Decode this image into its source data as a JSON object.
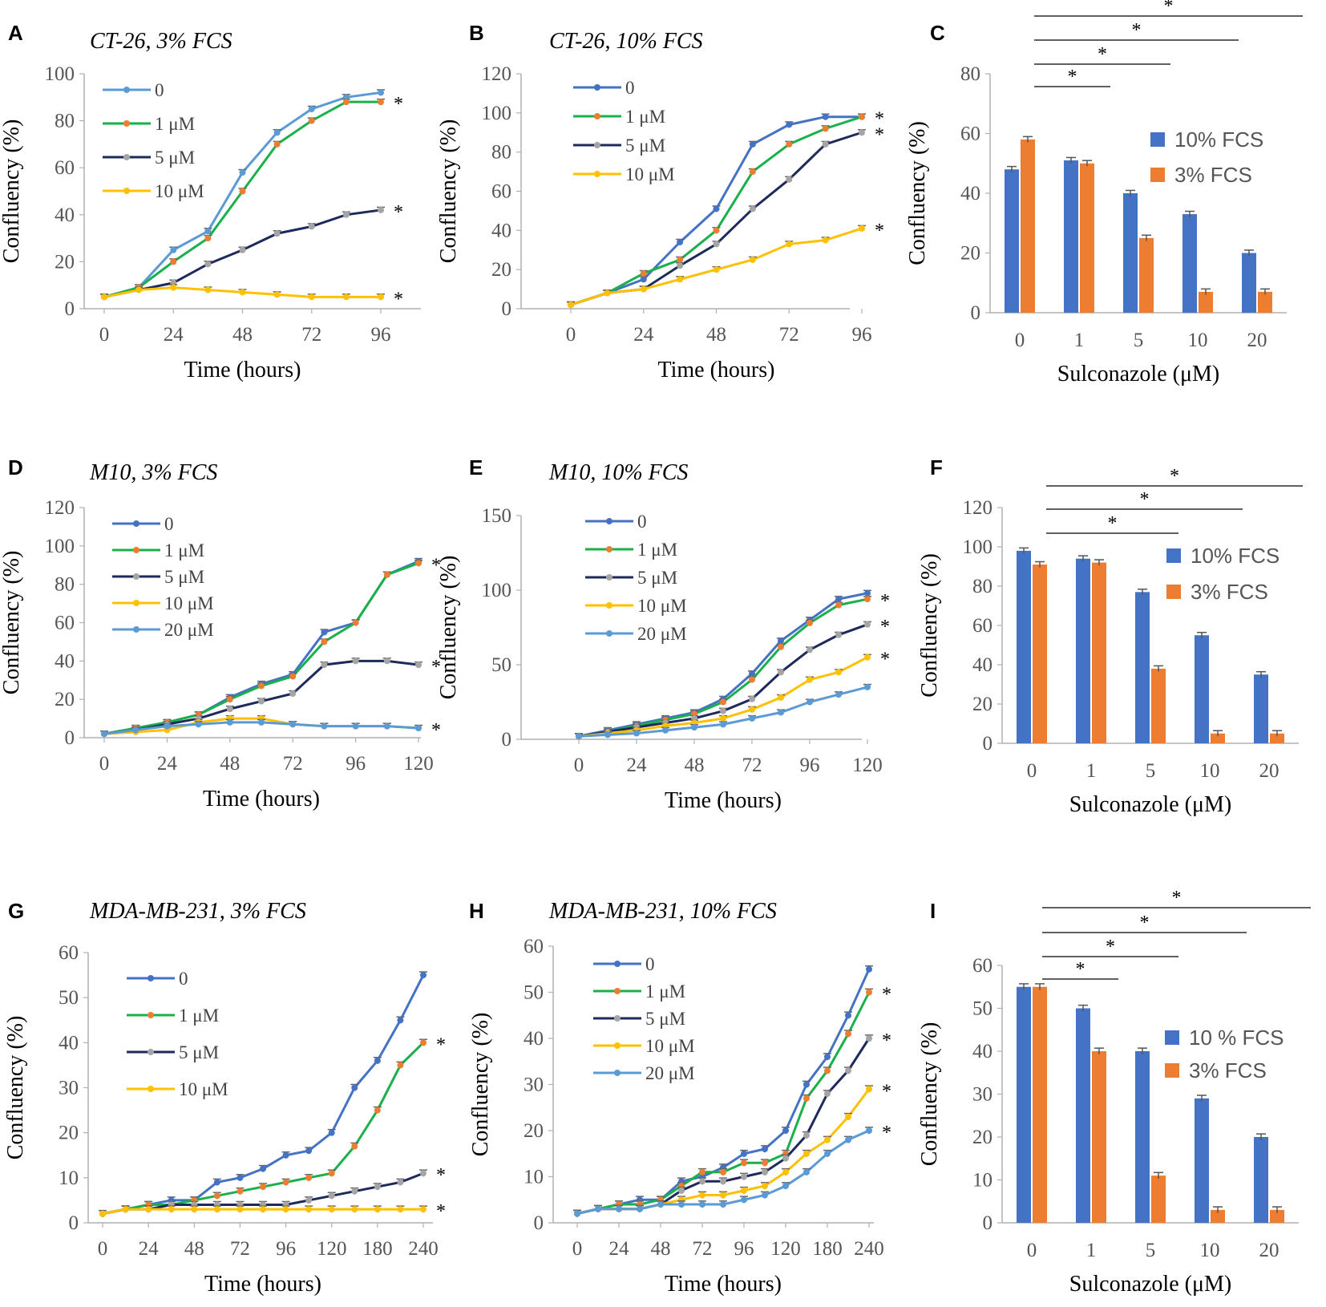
{
  "figure": {
    "x_label_time": "Time (hours)",
    "x_label_drug": "Sulconazole (μM)",
    "y_label": "Confluency (%)",
    "colors": {
      "c0": "#4472C4",
      "c0_light": "#5B9BD5",
      "c1": "#1AB04A",
      "c5": "#1F2A5C",
      "c10": "#FFC000",
      "c20": "#5B9BD5",
      "marker1": "#ED7D31",
      "marker5": "#A5A5A5",
      "bar10": "#4472C4",
      "bar3": "#ED7D31"
    }
  },
  "chart_data": [
    {
      "panel": "A",
      "type": "line",
      "title": "CT-26, 3% FCS",
      "x": [
        0,
        12,
        24,
        36,
        48,
        60,
        72,
        84,
        96
      ],
      "xticks": [
        "0",
        "24",
        "48",
        "72",
        "96"
      ],
      "ylim": [
        0,
        100
      ],
      "yticks": [
        "0",
        "20",
        "40",
        "60",
        "80",
        "100"
      ],
      "series": [
        {
          "name": "0",
          "values": [
            5,
            9,
            25,
            33,
            58,
            75,
            85,
            90,
            92
          ]
        },
        {
          "name": "1 μM",
          "values": [
            5,
            9,
            20,
            30,
            50,
            70,
            80,
            88,
            88
          ]
        },
        {
          "name": "5 μM",
          "values": [
            5,
            8,
            11,
            19,
            25,
            32,
            35,
            40,
            42
          ]
        },
        {
          "name": "10 μM",
          "values": [
            5,
            8,
            9,
            8,
            7,
            6,
            5,
            5,
            5
          ]
        }
      ],
      "significance": [
        "*",
        "*",
        "*"
      ]
    },
    {
      "panel": "B",
      "type": "line",
      "title": "CT-26, 10% FCS",
      "x": [
        0,
        12,
        24,
        36,
        48,
        60,
        72,
        84,
        96
      ],
      "xticks": [
        "0",
        "24",
        "48",
        "72",
        "96"
      ],
      "ylim": [
        0,
        120
      ],
      "yticks": [
        "0",
        "20",
        "40",
        "60",
        "80",
        "100",
        "120"
      ],
      "series": [
        {
          "name": "0",
          "values": [
            2,
            8,
            15,
            34,
            51,
            84,
            94,
            98,
            98
          ]
        },
        {
          "name": "1 μM",
          "values": [
            2,
            8,
            18,
            25,
            40,
            70,
            84,
            92,
            98
          ]
        },
        {
          "name": "5 μM",
          "values": [
            2,
            8,
            10,
            22,
            33,
            51,
            66,
            84,
            90
          ]
        },
        {
          "name": "10 μM",
          "values": [
            2,
            8,
            10,
            15,
            20,
            25,
            33,
            35,
            41
          ]
        }
      ],
      "significance": [
        "*",
        "*",
        "*"
      ]
    },
    {
      "panel": "C",
      "type": "bar",
      "categories": [
        "0",
        "1",
        "5",
        "10",
        "20"
      ],
      "ylim": [
        0,
        80
      ],
      "yticks": [
        "0",
        "20",
        "40",
        "60",
        "80"
      ],
      "series": [
        {
          "name": "10%  FCS",
          "values": [
            48,
            51,
            40,
            33,
            20
          ]
        },
        {
          "name": "3% FCS",
          "values": [
            58,
            50,
            25,
            7,
            7
          ]
        }
      ],
      "significance": [
        "*",
        "*",
        "*",
        "*"
      ]
    },
    {
      "panel": "D",
      "type": "line",
      "title": "M10, 3% FCS",
      "x": [
        0,
        12,
        24,
        36,
        48,
        60,
        72,
        84,
        96,
        108,
        120
      ],
      "xticks": [
        "0",
        "24",
        "48",
        "72",
        "96",
        "120"
      ],
      "ylim": [
        0,
        120
      ],
      "yticks": [
        "0",
        "20",
        "40",
        "60",
        "80",
        "100",
        "120"
      ],
      "series": [
        {
          "name": "0",
          "values": [
            2,
            5,
            8,
            12,
            21,
            28,
            33,
            55,
            60,
            85,
            92
          ]
        },
        {
          "name": "1 μM",
          "values": [
            2,
            5,
            8,
            12,
            20,
            27,
            32,
            50,
            60,
            85,
            91
          ]
        },
        {
          "name": "5 μM",
          "values": [
            2,
            4,
            7,
            10,
            15,
            19,
            23,
            38,
            40,
            40,
            38
          ]
        },
        {
          "name": "10 μM",
          "values": [
            2,
            3,
            4,
            8,
            10,
            10,
            7,
            6,
            6,
            6,
            5
          ]
        },
        {
          "name": "20 μM",
          "values": [
            2,
            4,
            6,
            7,
            8,
            8,
            7,
            6,
            6,
            6,
            5
          ]
        }
      ],
      "significance": [
        "*",
        "*",
        "*"
      ]
    },
    {
      "panel": "E",
      "type": "line",
      "title": "M10, 10% FCS",
      "x": [
        0,
        12,
        24,
        36,
        48,
        60,
        72,
        84,
        96,
        108,
        120
      ],
      "xticks": [
        "0",
        "24",
        "48",
        "72",
        "96",
        "120"
      ],
      "ylim": [
        0,
        150
      ],
      "yticks": [
        "0",
        "50",
        "100",
        "150"
      ],
      "series": [
        {
          "name": "0",
          "values": [
            2,
            6,
            10,
            14,
            18,
            27,
            44,
            66,
            80,
            94,
            98
          ]
        },
        {
          "name": "1 μM",
          "values": [
            2,
            5,
            9,
            13,
            17,
            25,
            40,
            62,
            78,
            90,
            94
          ]
        },
        {
          "name": "5 μM",
          "values": [
            2,
            5,
            8,
            11,
            14,
            19,
            27,
            45,
            60,
            70,
            77
          ]
        },
        {
          "name": "10 μM",
          "values": [
            2,
            4,
            6,
            9,
            11,
            14,
            20,
            28,
            40,
            45,
            55
          ]
        },
        {
          "name": "20 μM",
          "values": [
            2,
            3,
            4,
            6,
            8,
            10,
            14,
            18,
            25,
            30,
            35
          ]
        }
      ],
      "significance": [
        "*",
        "*",
        "*"
      ]
    },
    {
      "panel": "F",
      "type": "bar",
      "categories": [
        "0",
        "1",
        "5",
        "10",
        "20"
      ],
      "ylim": [
        0,
        120
      ],
      "yticks": [
        "0",
        "20",
        "40",
        "60",
        "80",
        "100",
        "120"
      ],
      "series": [
        {
          "name": "10% FCS",
          "values": [
            98,
            94,
            77,
            55,
            35
          ]
        },
        {
          "name": "3%  FCS",
          "values": [
            91,
            92,
            38,
            5,
            5
          ]
        }
      ],
      "significance": [
        "*",
        "*",
        "*"
      ]
    },
    {
      "panel": "G",
      "type": "line",
      "title": "MDA-MB-231, 3% FCS",
      "x": [
        0,
        12,
        24,
        36,
        48,
        60,
        72,
        84,
        96,
        108,
        120,
        150,
        180,
        210,
        240
      ],
      "xticks": [
        "0",
        "24",
        "48",
        "72",
        "96",
        "120",
        "180",
        "240"
      ],
      "ylim": [
        0,
        60
      ],
      "yticks": [
        "0",
        "10",
        "20",
        "30",
        "40",
        "50",
        "60"
      ],
      "series": [
        {
          "name": "0",
          "values": [
            2,
            3,
            4,
            5,
            5,
            9,
            10,
            12,
            15,
            16,
            20,
            30,
            36,
            45,
            55
          ]
        },
        {
          "name": "1 μM",
          "values": [
            2,
            3,
            4,
            4,
            5,
            6,
            7,
            8,
            9,
            10,
            11,
            17,
            25,
            35,
            40
          ]
        },
        {
          "name": "5 μM",
          "values": [
            2,
            3,
            3,
            4,
            4,
            4,
            4,
            4,
            4,
            5,
            6,
            7,
            8,
            9,
            11
          ]
        },
        {
          "name": "10 μM",
          "values": [
            2,
            3,
            3,
            3,
            3,
            3,
            3,
            3,
            3,
            3,
            3,
            3,
            3,
            3,
            3
          ]
        }
      ],
      "significance": [
        "*",
        "*",
        "*"
      ]
    },
    {
      "panel": "H",
      "type": "line",
      "title": "MDA-MB-231, 10% FCS",
      "x": [
        0,
        12,
        24,
        36,
        48,
        60,
        72,
        84,
        96,
        108,
        120,
        150,
        180,
        210,
        240
      ],
      "xticks": [
        "0",
        "24",
        "48",
        "72",
        "96",
        "120",
        "180",
        "240"
      ],
      "ylim": [
        0,
        60
      ],
      "yticks": [
        "0",
        "10",
        "20",
        "30",
        "40",
        "50",
        "60"
      ],
      "series": [
        {
          "name": "0",
          "values": [
            2,
            3,
            4,
            5,
            5,
            9,
            10,
            12,
            15,
            16,
            20,
            30,
            36,
            45,
            55
          ]
        },
        {
          "name": "1 μM",
          "values": [
            2,
            3,
            4,
            4,
            5,
            8,
            11,
            11,
            13,
            13,
            15,
            27,
            33,
            41,
            50
          ]
        },
        {
          "name": "5 μM",
          "values": [
            2,
            3,
            3,
            3,
            4,
            7,
            9,
            9,
            10,
            11,
            14,
            19,
            28,
            33,
            40
          ]
        },
        {
          "name": "10 μM",
          "values": [
            2,
            3,
            3,
            3,
            4,
            5,
            6,
            6,
            7,
            8,
            11,
            15,
            18,
            23,
            29
          ]
        },
        {
          "name": "20 μM",
          "values": [
            2,
            3,
            3,
            3,
            4,
            4,
            4,
            4,
            5,
            6,
            8,
            11,
            15,
            18,
            20
          ]
        }
      ],
      "significance": [
        "*",
        "*",
        "*",
        "*"
      ]
    },
    {
      "panel": "I",
      "type": "bar",
      "categories": [
        "0",
        "1",
        "5",
        "10",
        "20"
      ],
      "ylim": [
        0,
        60
      ],
      "yticks": [
        "0",
        "10",
        "20",
        "30",
        "40",
        "50",
        "60"
      ],
      "series": [
        {
          "name": "10 % FCS",
          "values": [
            55,
            50,
            40,
            29,
            20
          ]
        },
        {
          "name": "3% FCS",
          "values": [
            55,
            40,
            11,
            3,
            3
          ]
        }
      ],
      "significance": [
        "*",
        "*",
        "*",
        "*"
      ]
    }
  ]
}
